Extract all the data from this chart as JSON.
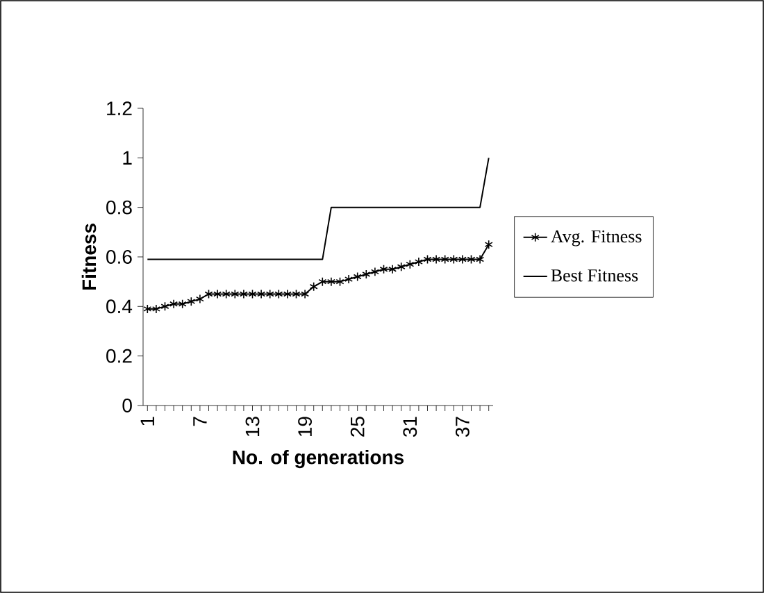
{
  "chart_data": {
    "type": "line",
    "xlabel": "No. of generations",
    "ylabel": "Fitness",
    "categories": [
      "1",
      null,
      null,
      null,
      null,
      null,
      "7",
      null,
      null,
      null,
      null,
      null,
      "13",
      null,
      null,
      null,
      null,
      null,
      "19",
      null,
      null,
      null,
      null,
      null,
      "25",
      null,
      null,
      null,
      null,
      null,
      "31",
      null,
      null,
      null,
      null,
      null,
      "37",
      null,
      null,
      null
    ],
    "ylim": [
      0,
      1.2
    ],
    "yticks": [
      0,
      0.2,
      0.4,
      0.6,
      0.8,
      1,
      1.2
    ],
    "legend": "right",
    "series": [
      {
        "name": "Avg. Fitness",
        "color": "#000000",
        "marker": "cross",
        "values": [
          0.39,
          0.39,
          0.4,
          0.41,
          0.41,
          0.42,
          0.43,
          0.45,
          0.45,
          0.45,
          0.45,
          0.45,
          0.45,
          0.45,
          0.45,
          0.45,
          0.45,
          0.45,
          0.45,
          0.48,
          0.5,
          0.5,
          0.5,
          0.51,
          0.52,
          0.53,
          0.54,
          0.55,
          0.55,
          0.56,
          0.57,
          0.58,
          0.59,
          0.59,
          0.59,
          0.59,
          0.59,
          0.59,
          0.59,
          0.65
        ]
      },
      {
        "name": "Best Fitness",
        "color": "#000000",
        "marker": "none",
        "values": [
          0.59,
          0.59,
          0.59,
          0.59,
          0.59,
          0.59,
          0.59,
          0.59,
          0.59,
          0.59,
          0.59,
          0.59,
          0.59,
          0.59,
          0.59,
          0.59,
          0.59,
          0.59,
          0.59,
          0.59,
          0.59,
          0.8,
          0.8,
          0.8,
          0.8,
          0.8,
          0.8,
          0.8,
          0.8,
          0.8,
          0.8,
          0.8,
          0.8,
          0.8,
          0.8,
          0.8,
          0.8,
          0.8,
          0.8,
          1.0
        ]
      }
    ]
  }
}
